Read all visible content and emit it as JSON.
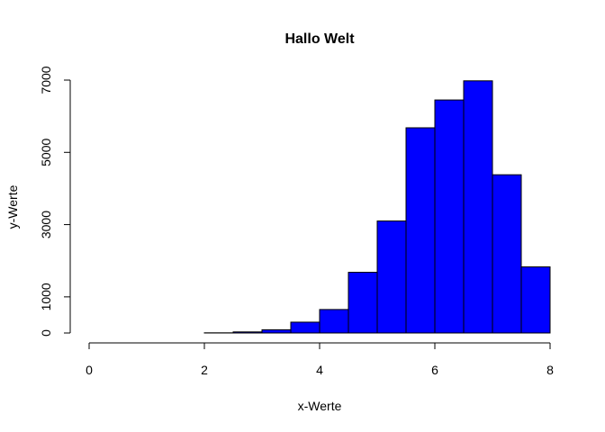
{
  "chart_data": {
    "type": "bar",
    "title": "Hallo Welt",
    "xlabel": "x-Werte",
    "ylabel": "y-Werte",
    "bar_color": "#0000ff",
    "edge_color": "#000000",
    "xlim": [
      0,
      8
    ],
    "ylim": [
      0,
      7000
    ],
    "x_ticks": [
      "0",
      "2",
      "4",
      "6",
      "8"
    ],
    "y_ticks": [
      "0",
      "1000",
      "3000",
      "5000",
      "7000"
    ],
    "bins": [
      {
        "start": 0.0,
        "end": 0.5,
        "value": 0
      },
      {
        "start": 0.5,
        "end": 1.0,
        "value": 0
      },
      {
        "start": 1.0,
        "end": 1.5,
        "value": 0
      },
      {
        "start": 1.5,
        "end": 2.0,
        "value": 0
      },
      {
        "start": 2.0,
        "end": 2.5,
        "value": 5
      },
      {
        "start": 2.5,
        "end": 3.0,
        "value": 30
      },
      {
        "start": 3.0,
        "end": 3.5,
        "value": 90
      },
      {
        "start": 3.5,
        "end": 4.0,
        "value": 300
      },
      {
        "start": 4.0,
        "end": 4.5,
        "value": 650
      },
      {
        "start": 4.5,
        "end": 5.0,
        "value": 1680
      },
      {
        "start": 5.0,
        "end": 5.5,
        "value": 3100
      },
      {
        "start": 5.5,
        "end": 6.0,
        "value": 5680
      },
      {
        "start": 6.0,
        "end": 6.5,
        "value": 6450
      },
      {
        "start": 6.5,
        "end": 7.0,
        "value": 6980
      },
      {
        "start": 7.0,
        "end": 7.5,
        "value": 4380
      },
      {
        "start": 7.5,
        "end": 8.0,
        "value": 1830
      }
    ]
  }
}
